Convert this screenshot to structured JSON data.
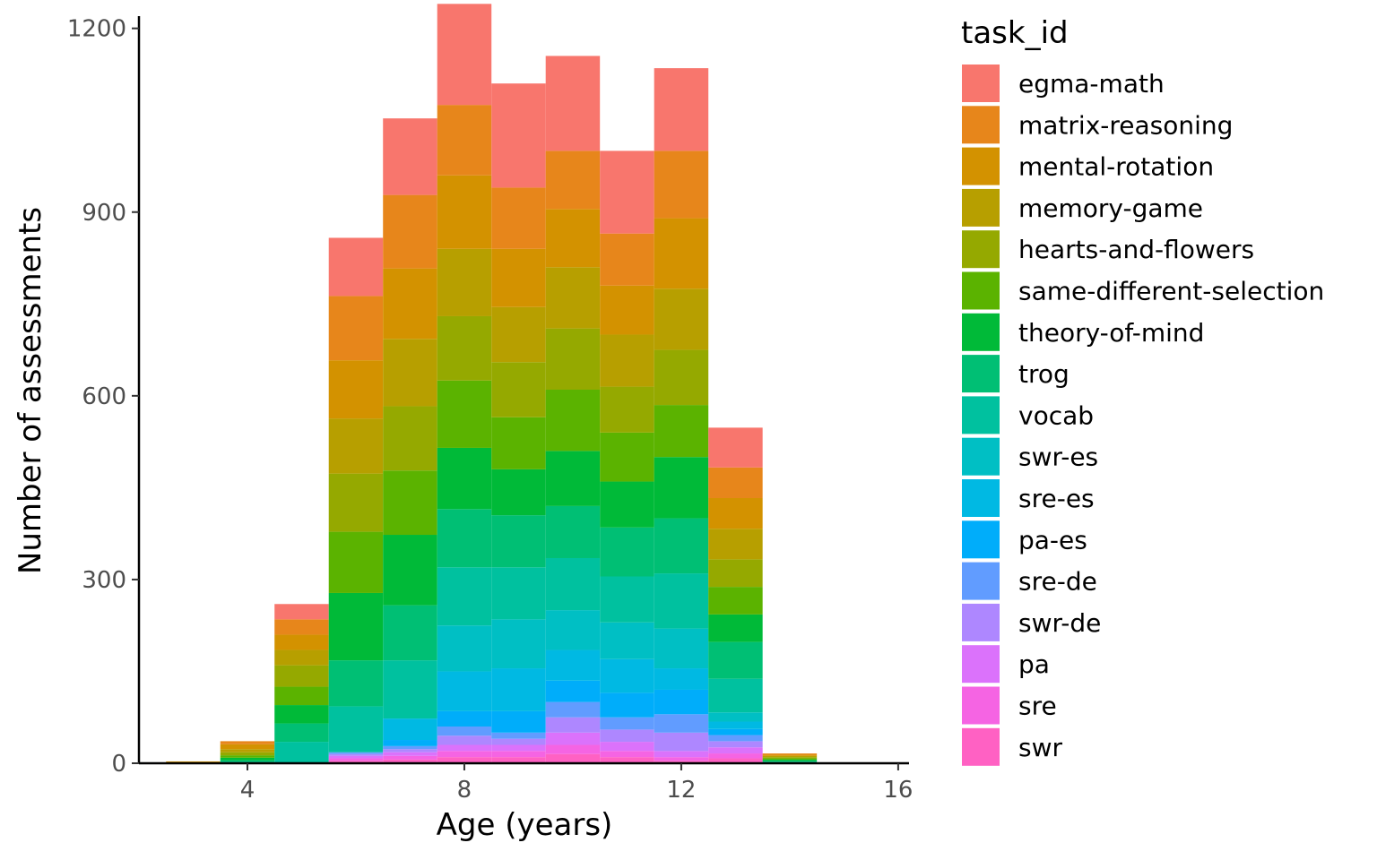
{
  "chart_data": {
    "type": "bar",
    "subtype": "stacked-histogram",
    "xlabel": "Age (years)",
    "ylabel": "Number of assessments",
    "xlim": [
      2,
      16.2
    ],
    "ylim": [
      0,
      1220
    ],
    "x_ticks": [
      4,
      8,
      12,
      16
    ],
    "y_ticks": [
      0,
      300,
      600,
      900,
      1200
    ],
    "bin_width": 1,
    "bins": [
      3,
      4,
      5,
      6,
      7,
      8,
      9,
      10,
      11,
      12,
      13,
      14,
      15
    ],
    "grid": false,
    "legend": {
      "title": "task_id",
      "position": "right"
    },
    "series": [
      {
        "name": "egma-math",
        "color": "#F8766D",
        "values": [
          0,
          0,
          25,
          95,
          125,
          165,
          170,
          155,
          135,
          135,
          65,
          0,
          0
        ]
      },
      {
        "name": "matrix-reasoning",
        "color": "#E7861B",
        "values": [
          0,
          5,
          25,
          105,
          120,
          115,
          100,
          95,
          85,
          110,
          50,
          2,
          0
        ]
      },
      {
        "name": "mental-rotation",
        "color": "#D39200",
        "values": [
          3,
          8,
          25,
          95,
          115,
          120,
          95,
          95,
          80,
          115,
          50,
          2,
          0
        ]
      },
      {
        "name": "memory-game",
        "color": "#B79F00",
        "values": [
          0,
          5,
          25,
          90,
          110,
          110,
          90,
          100,
          85,
          100,
          50,
          2,
          0
        ]
      },
      {
        "name": "hearts-and-flowers",
        "color": "#95A900",
        "values": [
          0,
          5,
          35,
          95,
          105,
          105,
          90,
          100,
          75,
          90,
          45,
          2,
          0
        ]
      },
      {
        "name": "same-different-selection",
        "color": "#5BB300",
        "values": [
          0,
          4,
          30,
          100,
          105,
          110,
          85,
          100,
          80,
          85,
          45,
          2,
          0
        ]
      },
      {
        "name": "theory-of-mind",
        "color": "#00BA38",
        "values": [
          0,
          4,
          30,
          110,
          115,
          100,
          75,
          90,
          75,
          100,
          45,
          2,
          0
        ]
      },
      {
        "name": "trog",
        "color": "#00BF74",
        "values": [
          0,
          3,
          30,
          75,
          90,
          95,
          85,
          85,
          80,
          90,
          60,
          2,
          0
        ]
      },
      {
        "name": "vocab",
        "color": "#00C19F",
        "values": [
          0,
          2,
          35,
          75,
          95,
          95,
          85,
          85,
          75,
          90,
          55,
          2,
          0
        ]
      },
      {
        "name": "swr-es",
        "color": "#00BFC4",
        "values": [
          0,
          0,
          0,
          0,
          0,
          75,
          80,
          65,
          60,
          65,
          15,
          0,
          0
        ]
      },
      {
        "name": "sre-es",
        "color": "#00B9E3",
        "values": [
          0,
          0,
          0,
          0,
          35,
          65,
          70,
          50,
          55,
          35,
          12,
          0,
          0
        ]
      },
      {
        "name": "pa-es",
        "color": "#00ADFA",
        "values": [
          0,
          0,
          0,
          0,
          10,
          25,
          35,
          35,
          40,
          40,
          10,
          0,
          0
        ]
      },
      {
        "name": "sre-de",
        "color": "#619CFF",
        "values": [
          0,
          0,
          0,
          3,
          5,
          15,
          10,
          25,
          20,
          30,
          10,
          0,
          0
        ]
      },
      {
        "name": "swr-de",
        "color": "#AE87FF",
        "values": [
          0,
          0,
          0,
          3,
          5,
          15,
          10,
          25,
          20,
          30,
          10,
          0,
          0
        ]
      },
      {
        "name": "pa",
        "color": "#DB72FB",
        "values": [
          0,
          0,
          0,
          4,
          6,
          10,
          10,
          20,
          15,
          10,
          10,
          0,
          0
        ]
      },
      {
        "name": "sre",
        "color": "#F564E3",
        "values": [
          0,
          0,
          0,
          4,
          6,
          10,
          10,
          15,
          10,
          6,
          8,
          0,
          0
        ]
      },
      {
        "name": "swr",
        "color": "#FF61C3",
        "values": [
          0,
          0,
          0,
          4,
          6,
          10,
          10,
          15,
          10,
          4,
          8,
          0,
          0
        ]
      }
    ]
  }
}
